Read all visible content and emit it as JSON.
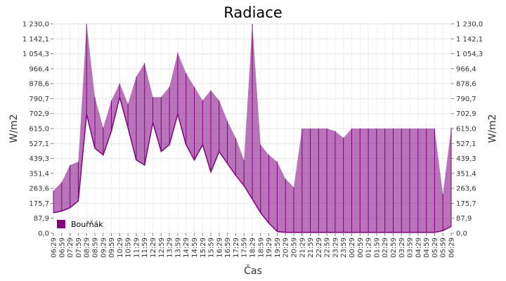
{
  "chart_data": {
    "type": "area",
    "title": "Radiace",
    "xlabel": "Čas",
    "ylabel": "W/m2",
    "ylabel_right": "W/m2",
    "ylim": [
      0,
      1230
    ],
    "yticks": [
      "0,0",
      "87,9",
      "175,7",
      "263,6",
      "351,4",
      "439,3",
      "527,1",
      "615,0",
      "702,9",
      "790,7",
      "878,6",
      "966,4",
      "1 054,3",
      "1 142,1",
      "1 230,0"
    ],
    "ytick_values": [
      0,
      87.9,
      175.7,
      263.6,
      351.4,
      439.3,
      527.1,
      615.0,
      702.9,
      790.7,
      878.6,
      966.4,
      1054.3,
      1142.1,
      1230.0
    ],
    "xticks": [
      "06:29",
      "06:59",
      "07:29",
      "07:59",
      "08:29",
      "08:59",
      "09:29",
      "09:59",
      "10:29",
      "10:59",
      "11:29",
      "11:59",
      "12:29",
      "12:59",
      "13:29",
      "13:59",
      "14:29",
      "14:59",
      "15:29",
      "15:59",
      "16:29",
      "16:59",
      "17:29",
      "17:59",
      "18:29",
      "18:59",
      "19:29",
      "19:59",
      "20:29",
      "20:59",
      "21:29",
      "21:59",
      "22:29",
      "22:59",
      "23:29",
      "23:59",
      "00:29",
      "00:59",
      "01:29",
      "01:59",
      "02:29",
      "02:59",
      "03:29",
      "03:59",
      "04:29",
      "04:59",
      "05:29",
      "05:59",
      "06:29"
    ],
    "grid": true,
    "legend_placement": "bottom-left",
    "series": [
      {
        "name": "Bouřňák",
        "color": "#800080",
        "x_hours": [
          0,
          0.5,
          1,
          1.5,
          2,
          2.5,
          3,
          3.5,
          4,
          4.5,
          5,
          5.5,
          6,
          6.5,
          7,
          7.5,
          8,
          8.5,
          9,
          9.5,
          10,
          10.5,
          11,
          11.5,
          12,
          12.5,
          13,
          13.5,
          14,
          14.5,
          15,
          15.5,
          16,
          16.5,
          17,
          17.5,
          18,
          18.5,
          19,
          19.5,
          20,
          20.5,
          21,
          21.5,
          22,
          22.5,
          23,
          23.5,
          24
        ],
        "values": [
          120,
          130,
          150,
          190,
          700,
          500,
          460,
          600,
          800,
          620,
          430,
          400,
          650,
          480,
          520,
          700,
          520,
          430,
          520,
          360,
          480,
          410,
          340,
          280,
          200,
          120,
          60,
          10,
          5,
          5,
          5,
          5,
          5,
          5,
          5,
          5,
          5,
          5,
          5,
          5,
          5,
          5,
          5,
          5,
          5,
          5,
          5,
          15,
          40
        ],
        "upper": [
          250,
          300,
          400,
          420,
          1230,
          800,
          620,
          780,
          880,
          760,
          920,
          1000,
          800,
          800,
          860,
          1060,
          940,
          860,
          780,
          840,
          780,
          660,
          560,
          430,
          1230,
          520,
          460,
          420,
          320,
          270,
          615,
          615,
          615,
          615,
          600,
          560,
          615,
          615,
          615,
          615,
          615,
          615,
          615,
          615,
          615,
          615,
          615,
          230,
          620
        ]
      }
    ]
  }
}
